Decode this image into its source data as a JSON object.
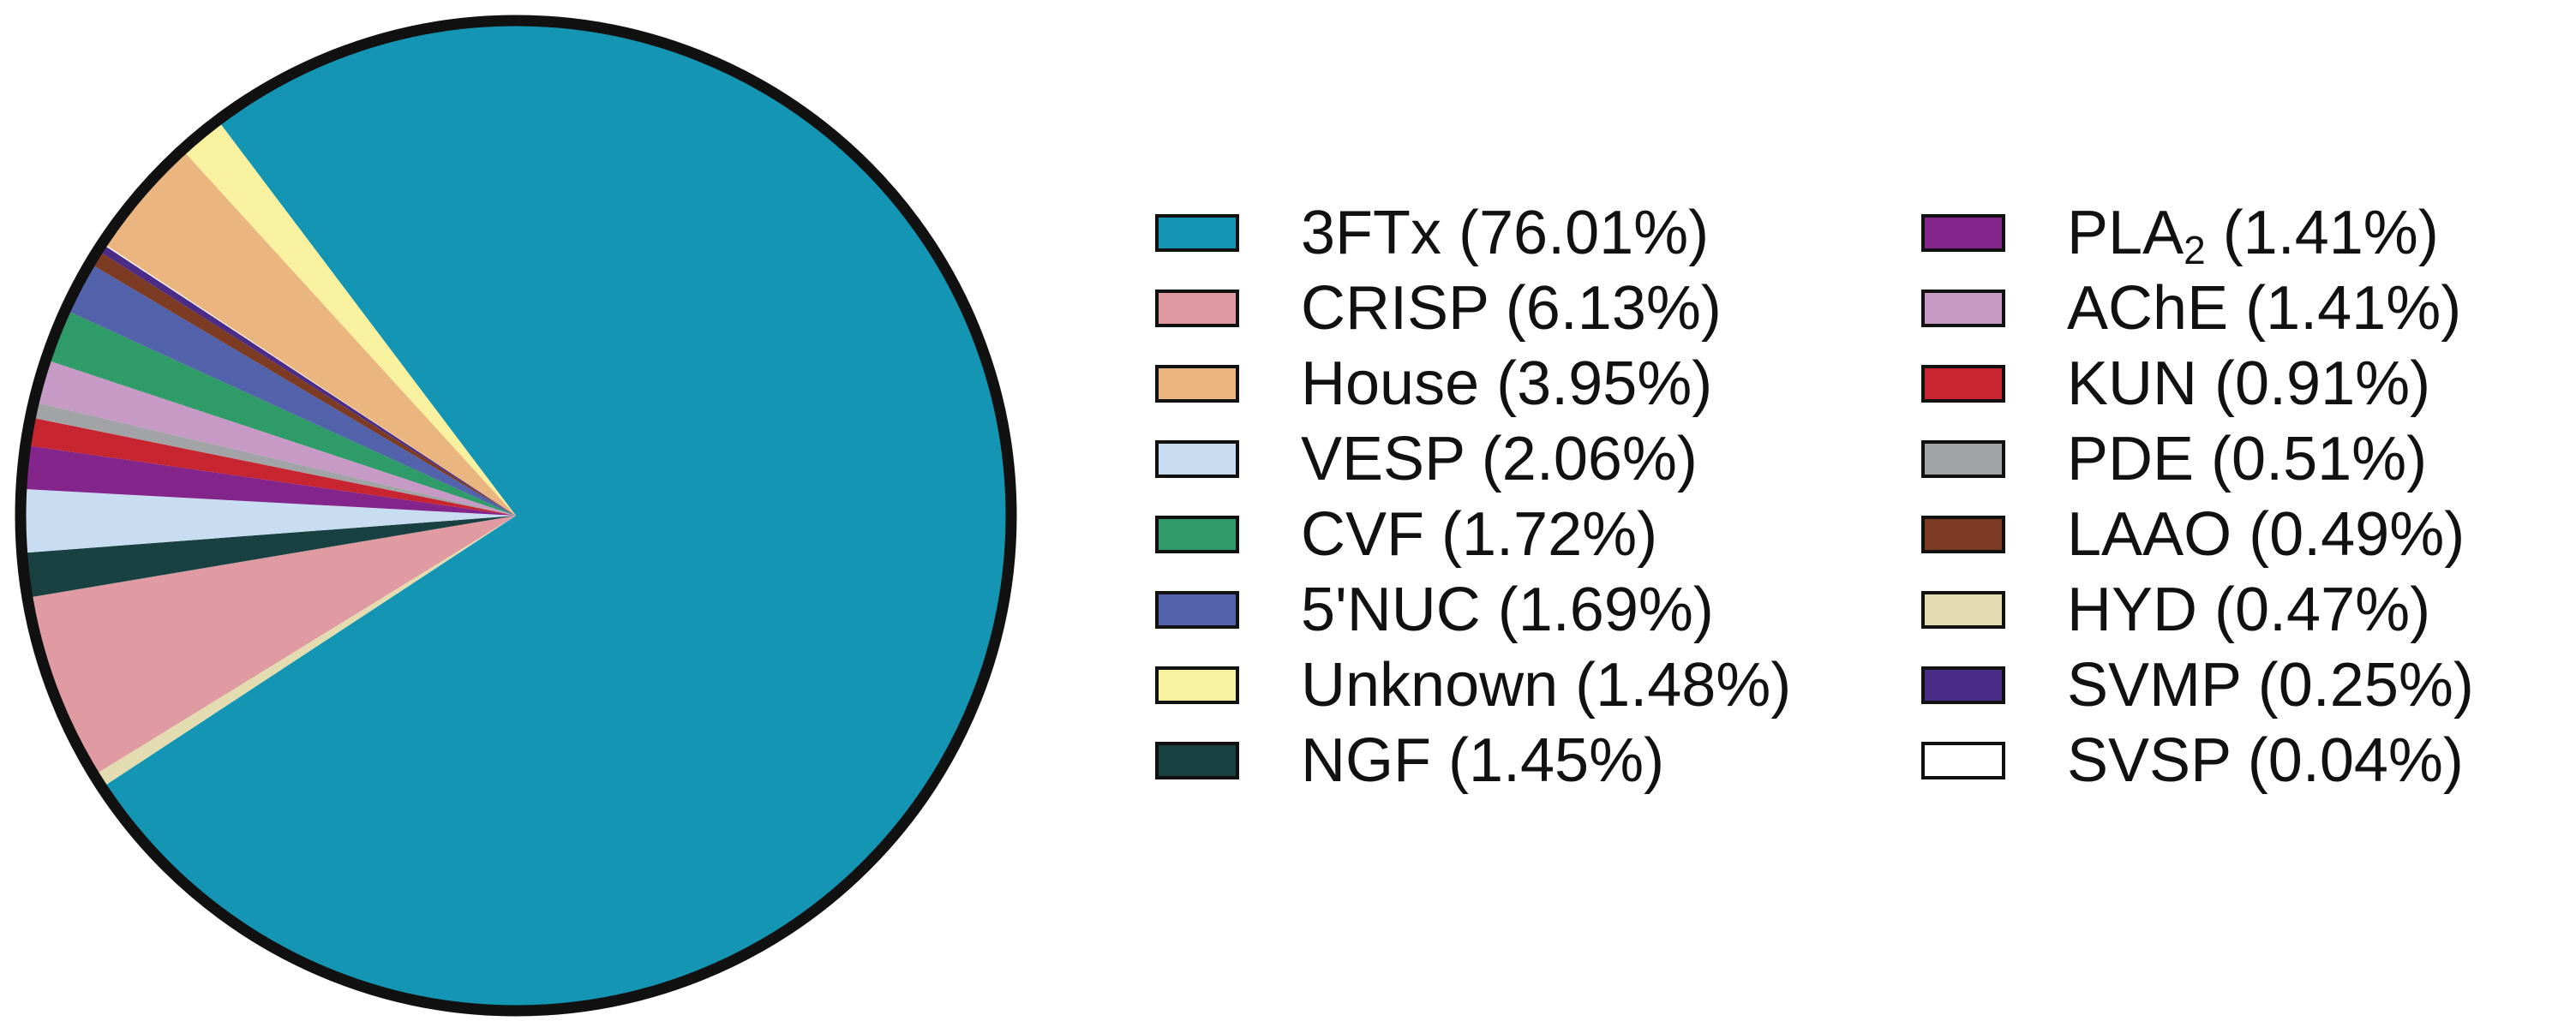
{
  "chart_data": {
    "type": "pie",
    "title": "",
    "start_angle_deg": 127,
    "direction": "clockwise",
    "slices": [
      {
        "label": "3FTx",
        "value": 76.01,
        "color": "#1495b3",
        "legend_text": "3FTx (76.01%)"
      },
      {
        "label": "HYD",
        "value": 0.47,
        "color": "#e2dcb0",
        "legend_text": "HYD (0.47%)"
      },
      {
        "label": "CRISP",
        "value": 6.13,
        "color": "#e09aa2",
        "legend_text": "CRISP (6.13%)"
      },
      {
        "label": "NGF",
        "value": 1.45,
        "color": "#1a4142",
        "legend_text": "NGF (1.45%)"
      },
      {
        "label": "VESP",
        "value": 2.06,
        "color": "#c9ddf2",
        "legend_text": "VESP (2.06%)"
      },
      {
        "label": "PLA2",
        "value": 1.41,
        "color": "#84258b",
        "legend_base": "PLA",
        "legend_sub": "2",
        "legend_suffix": " (1.41%)"
      },
      {
        "label": "KUN",
        "value": 0.91,
        "color": "#c72530",
        "legend_text": "KUN (0.91%)"
      },
      {
        "label": "PDE",
        "value": 0.51,
        "color": "#a2a3a6",
        "legend_text": "PDE (0.51%)"
      },
      {
        "label": "AChE",
        "value": 1.41,
        "color": "#c79ac6",
        "legend_text": "AChE (1.41%)"
      },
      {
        "label": "CVF",
        "value": 1.72,
        "color": "#2f9b68",
        "legend_text": "CVF (1.72%)"
      },
      {
        "label": "5'NUC",
        "value": 1.69,
        "color": "#5262ab",
        "legend_text": "5'NUC (1.69%)"
      },
      {
        "label": "LAAO",
        "value": 0.49,
        "color": "#7d3b24",
        "legend_text": "LAAO (0.49%)"
      },
      {
        "label": "SVMP",
        "value": 0.25,
        "color": "#4b2d88",
        "legend_text": "SVMP (0.25%)"
      },
      {
        "label": "SVSP",
        "value": 0.04,
        "color": "#ffffff",
        "legend_text": "SVSP (0.04%)"
      },
      {
        "label": "House",
        "value": 3.95,
        "color": "#eab57f",
        "legend_text": "House (3.95%)"
      },
      {
        "label": "Unknown",
        "value": 1.48,
        "color": "#f8f1a0",
        "legend_text": "Unknown (1.48%)"
      }
    ],
    "legend": {
      "columns": [
        [
          "3FTx",
          "CRISP",
          "House",
          "VESP",
          "CVF",
          "5'NUC",
          "Unknown",
          "NGF"
        ],
        [
          "PLA2",
          "AChE",
          "KUN",
          "PDE",
          "LAAO",
          "HYD",
          "SVMP",
          "SVSP"
        ]
      ],
      "placement": "right"
    }
  }
}
